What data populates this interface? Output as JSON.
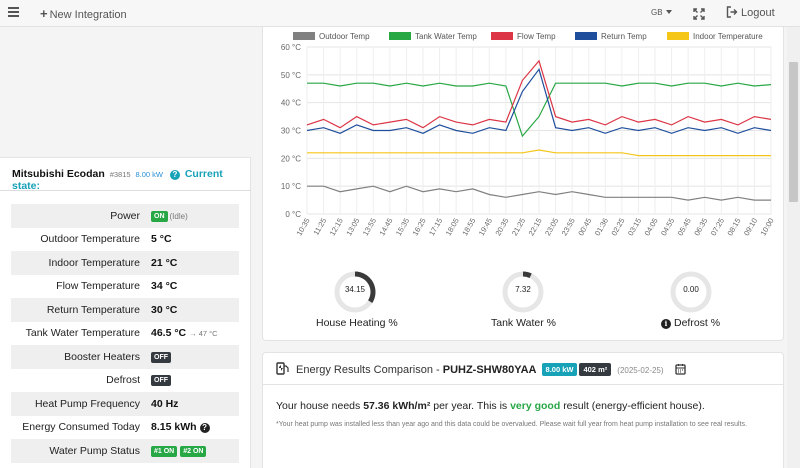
{
  "topbar": {
    "new_integration": "New Integration",
    "language": "GB",
    "logout": "Logout"
  },
  "device": {
    "name": "Mitsubishi Ecodan",
    "id": "#3815",
    "power": "8.00 kW",
    "current_state_label": "Current state:"
  },
  "state_rows": [
    {
      "label": "Power",
      "value": "",
      "badge": "ON",
      "extra": "(Idle)"
    },
    {
      "label": "Outdoor Temperature",
      "value": "5 °C"
    },
    {
      "label": "Indoor Temperature",
      "value": "21 °C"
    },
    {
      "label": "Flow Temperature",
      "value": "34 °C"
    },
    {
      "label": "Return Temperature",
      "value": "30 °C"
    },
    {
      "label": "Tank Water Temperature",
      "value": "46.5 °C",
      "extra": "→ 47 °C"
    },
    {
      "label": "Booster Heaters",
      "value": "",
      "badge": "OFF"
    },
    {
      "label": "Defrost",
      "value": "",
      "badge": "OFF"
    },
    {
      "label": "Heat Pump Frequency",
      "value": "40 Hz"
    },
    {
      "label": "Energy Consumed Today",
      "value": "8.15 kWh"
    },
    {
      "label": "Water Pump Status",
      "value": "",
      "badge": "#1 ON",
      "badge2": "#2 ON"
    }
  ],
  "chart_data": {
    "type": "line",
    "legend_position": "top",
    "grid": true,
    "ylim": [
      0,
      60
    ],
    "ytick_labels": [
      "0 °C",
      "10 °C",
      "20 °C",
      "30 °C",
      "40 °C",
      "50 °C",
      "60 °C"
    ],
    "x": [
      "10:35",
      "11:25",
      "12:15",
      "13:05",
      "13:55",
      "14:45",
      "15:35",
      "16:25",
      "17:15",
      "18:05",
      "18:55",
      "19:45",
      "20:35",
      "21:25",
      "22:15",
      "23:05",
      "23:55",
      "00:45",
      "01:36",
      "02:25",
      "03:15",
      "04:05",
      "04:55",
      "05:45",
      "06:35",
      "07:25",
      "08:15",
      "09:10",
      "10:00"
    ],
    "series": [
      {
        "name": "Outdoor Temp",
        "color": "#808080",
        "values": [
          10,
          10,
          8,
          9,
          10,
          8,
          10,
          8,
          9,
          8,
          9,
          7,
          6,
          7,
          8,
          7,
          8,
          7,
          6,
          6,
          6,
          6,
          6,
          5,
          6,
          5,
          6,
          5,
          5
        ]
      },
      {
        "name": "Tank Water Temp",
        "color": "#28a745",
        "values": [
          47,
          47,
          46,
          47,
          47,
          46,
          47,
          46,
          47,
          46,
          46,
          47,
          46,
          28,
          35,
          47,
          47,
          47,
          47,
          46,
          47,
          47,
          46,
          47,
          47,
          46,
          47,
          46,
          46.5
        ]
      },
      {
        "name": "Flow Temp",
        "color": "#dc3545",
        "values": [
          32,
          34,
          31,
          35,
          32,
          33,
          34,
          31,
          35,
          33,
          32,
          34,
          33,
          48,
          55,
          35,
          33,
          34,
          32,
          35,
          33,
          34,
          32,
          35,
          33,
          34,
          32,
          35,
          34
        ]
      },
      {
        "name": "Return Temp",
        "color": "#1f4e9c",
        "values": [
          30,
          31,
          29,
          32,
          30,
          30,
          31,
          29,
          32,
          30,
          29,
          31,
          30,
          44,
          52,
          31,
          30,
          31,
          29,
          31,
          30,
          31,
          29,
          31,
          30,
          31,
          29,
          31,
          30
        ]
      },
      {
        "name": "Indoor Temperature",
        "color": "#f5c518",
        "values": [
          22,
          22,
          22,
          22,
          22,
          22,
          22,
          22,
          22,
          22,
          22,
          22,
          22,
          22,
          23,
          22,
          22,
          22,
          22,
          22,
          21,
          21,
          21,
          21,
          21,
          21,
          21,
          21,
          21
        ]
      }
    ]
  },
  "gauges": [
    {
      "value": "34.15",
      "label": "House Heating %",
      "fraction": 0.34
    },
    {
      "value": "7.32",
      "label": "Tank Water %",
      "fraction": 0.07
    },
    {
      "value": "0.00",
      "label": "Defrost %",
      "fraction": 0.0
    }
  ],
  "energy": {
    "title": "Energy Results Comparison -",
    "model": "PUHZ-SHW80YAA",
    "kw_badge": "8.00 kW",
    "area_badge": "402 m²",
    "date": "(2025-02-25)",
    "text_prefix": "Your house needs",
    "kwh_value": "57.36 kWh/m²",
    "text_middle": "per year. This is",
    "rating": "very good",
    "text_suffix": "result (energy-efficient house).",
    "note": "*Your heat pump was installed less than year ago and this data could be overvalued. Please wait full year from heat pump installation to see real results."
  }
}
